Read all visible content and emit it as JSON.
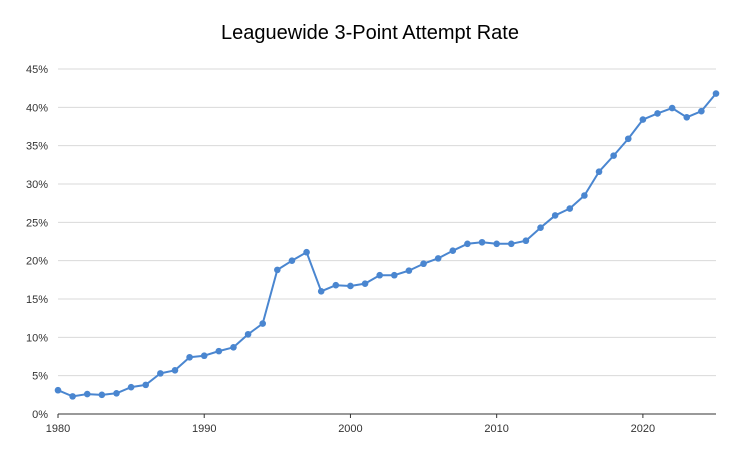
{
  "chart_data": {
    "type": "line",
    "title": "Leaguewide 3-Point Attempt Rate",
    "xlabel": "",
    "ylabel": "",
    "xlim": [
      1980,
      2025
    ],
    "ylim": [
      0,
      45
    ],
    "x_ticks": [
      1980,
      1990,
      2000,
      2010,
      2020
    ],
    "x_tick_labels": [
      "1980",
      "1990",
      "2000",
      "2010",
      "2020"
    ],
    "y_ticks": [
      0,
      5,
      10,
      15,
      20,
      25,
      30,
      35,
      40,
      45
    ],
    "y_tick_labels": [
      "0%",
      "5%",
      "10%",
      "15%",
      "20%",
      "25%",
      "30%",
      "35%",
      "40%",
      "45%"
    ],
    "grid": "horizontal",
    "legend": "none",
    "colors": {
      "line": "#4a86d0",
      "grid": "#d9d9d9",
      "axis": "#333333"
    },
    "series": [
      {
        "x": [
          1980,
          1981,
          1982,
          1983,
          1984,
          1985,
          1986,
          1987,
          1988,
          1989,
          1990,
          1991,
          1992,
          1993,
          1994,
          1995,
          1996,
          1997,
          1998,
          1999,
          2000,
          2001,
          2002,
          2003,
          2004,
          2005,
          2006,
          2007,
          2008,
          2009,
          2010,
          2011,
          2012,
          2013,
          2014,
          2015,
          2016,
          2017,
          2018,
          2019,
          2020,
          2021,
          2022,
          2023,
          2024,
          2025
        ],
        "values": [
          3.1,
          2.3,
          2.6,
          2.5,
          2.7,
          3.5,
          3.8,
          5.3,
          5.7,
          7.4,
          7.6,
          8.2,
          8.7,
          10.4,
          11.8,
          18.8,
          20.0,
          21.1,
          16.0,
          16.8,
          16.7,
          17.0,
          18.1,
          18.1,
          18.7,
          19.6,
          20.3,
          21.3,
          22.2,
          22.4,
          22.2,
          22.2,
          22.6,
          24.3,
          25.9,
          26.8,
          28.5,
          31.6,
          33.7,
          35.9,
          38.4,
          39.2,
          39.9,
          38.7,
          39.5,
          41.8
        ]
      }
    ]
  }
}
